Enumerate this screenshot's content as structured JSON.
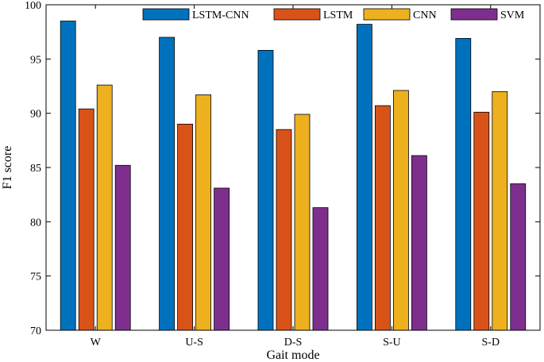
{
  "chart_data": {
    "type": "bar",
    "title": "",
    "xlabel": "Gait mode",
    "ylabel": "F1 score",
    "ylim": [
      70,
      100
    ],
    "yticks": [
      70,
      75,
      80,
      85,
      90,
      95,
      100
    ],
    "grid": false,
    "legend_position": "top-right",
    "categories": [
      "W",
      "U-S",
      "D-S",
      "S-U",
      "S-D"
    ],
    "series": [
      {
        "name": "LSTM-CNN",
        "color": "#0072BD",
        "values": [
          98.5,
          97.0,
          95.8,
          98.2,
          96.9
        ]
      },
      {
        "name": "LSTM",
        "color": "#D95319",
        "values": [
          90.4,
          89.0,
          88.5,
          90.7,
          90.1
        ]
      },
      {
        "name": "CNN",
        "color": "#EDB120",
        "values": [
          92.6,
          91.7,
          89.9,
          92.1,
          92.0
        ]
      },
      {
        "name": "SVM",
        "color": "#7E2F8E",
        "values": [
          85.2,
          83.1,
          81.3,
          86.1,
          83.5
        ]
      }
    ]
  }
}
